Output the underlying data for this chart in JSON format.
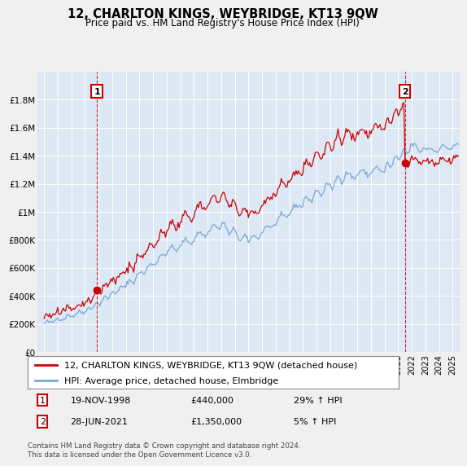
{
  "title": "12, CHARLTON KINGS, WEYBRIDGE, KT13 9QW",
  "subtitle": "Price paid vs. HM Land Registry's House Price Index (HPI)",
  "line1_label": "12, CHARLTON KINGS, WEYBRIDGE, KT13 9QW (detached house)",
  "line2_label": "HPI: Average price, detached house, Elmbridge",
  "line1_color": "#cc0000",
  "line2_color": "#7aa8d4",
  "background_color": "#f0f0f0",
  "plot_bg_color": "#dde8f5",
  "annotation1": {
    "num": "1",
    "date": "19-NOV-1998",
    "price": "£440,000",
    "hpi": "29% ↑ HPI"
  },
  "annotation2": {
    "num": "2",
    "date": "28-JUN-2021",
    "price": "£1,350,000",
    "hpi": "5% ↑ HPI"
  },
  "point1_x": 1998.88,
  "point1_y": 440000,
  "point2_x": 2021.49,
  "point2_y": 1350000,
  "ylim": [
    0,
    2000000
  ],
  "xlim": [
    1994.5,
    2025.5
  ],
  "footer": "Contains HM Land Registry data © Crown copyright and database right 2024.\nThis data is licensed under the Open Government Licence v3.0.",
  "yticks": [
    0,
    200000,
    400000,
    600000,
    800000,
    1000000,
    1200000,
    1400000,
    1600000,
    1800000
  ],
  "ytick_labels": [
    "£0",
    "£200K",
    "£400K",
    "£600K",
    "£800K",
    "£1M",
    "£1.2M",
    "£1.4M",
    "£1.6M",
    "£1.8M"
  ]
}
